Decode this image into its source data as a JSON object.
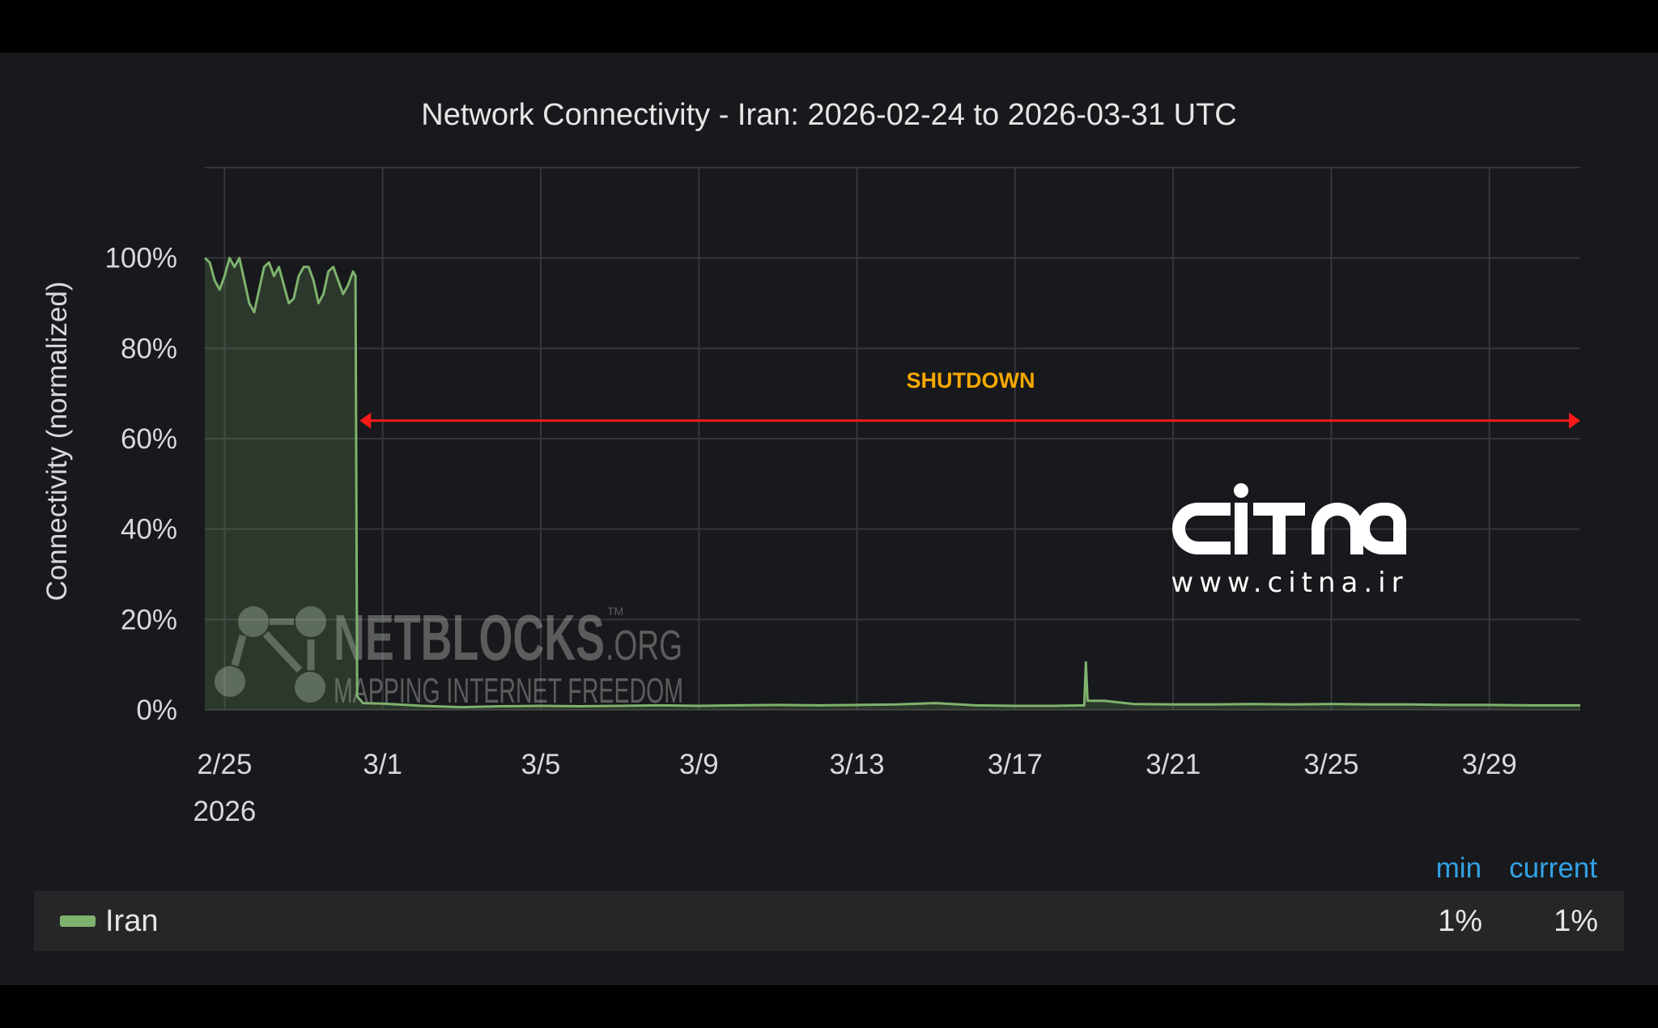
{
  "chart_data": {
    "type": "area",
    "title": "Network Connectivity - Iran: 2026-02-24 to 2026-03-31 UTC",
    "ylabel": "Connectivity (normalized)",
    "xlabel": "",
    "ylim": [
      0,
      120
    ],
    "xlim": [
      "2026-02-24T12:00",
      "2026-03-31T07:12"
    ],
    "grid": true,
    "yticks": [
      {
        "value": 0,
        "label": "0%"
      },
      {
        "value": 20,
        "label": "20%"
      },
      {
        "value": 40,
        "label": "40%"
      },
      {
        "value": 60,
        "label": "60%"
      },
      {
        "value": 80,
        "label": "80%"
      },
      {
        "value": 100,
        "label": "100%"
      }
    ],
    "xticks": [
      {
        "date": "2026-02-25",
        "label": "2/25",
        "sublabel": "2026"
      },
      {
        "date": "2026-03-01",
        "label": "3/1"
      },
      {
        "date": "2026-03-05",
        "label": "3/5"
      },
      {
        "date": "2026-03-09",
        "label": "3/9"
      },
      {
        "date": "2026-03-13",
        "label": "3/13"
      },
      {
        "date": "2026-03-17",
        "label": "3/17"
      },
      {
        "date": "2026-03-21",
        "label": "3/21"
      },
      {
        "date": "2026-03-25",
        "label": "3/25"
      },
      {
        "date": "2026-03-29",
        "label": "3/29"
      }
    ],
    "series": [
      {
        "name": "Iran",
        "color": "#7eb26d",
        "points": [
          [
            "2026-02-24T12:00",
            100
          ],
          [
            "2026-02-24T15:00",
            99
          ],
          [
            "2026-02-24T18:00",
            95
          ],
          [
            "2026-02-24T21:00",
            93
          ],
          [
            "2026-02-25T00:00",
            96
          ],
          [
            "2026-02-25T03:00",
            100
          ],
          [
            "2026-02-25T06:00",
            98
          ],
          [
            "2026-02-25T09:00",
            100
          ],
          [
            "2026-02-25T12:00",
            95
          ],
          [
            "2026-02-25T15:00",
            90
          ],
          [
            "2026-02-25T18:00",
            88
          ],
          [
            "2026-02-25T21:00",
            93
          ],
          [
            "2026-02-26T00:00",
            98
          ],
          [
            "2026-02-26T03:00",
            99
          ],
          [
            "2026-02-26T06:00",
            96
          ],
          [
            "2026-02-26T09:00",
            98
          ],
          [
            "2026-02-26T12:00",
            94
          ],
          [
            "2026-02-26T15:00",
            90
          ],
          [
            "2026-02-26T18:00",
            91
          ],
          [
            "2026-02-26T21:00",
            96
          ],
          [
            "2026-02-27T00:00",
            98
          ],
          [
            "2026-02-27T03:00",
            98
          ],
          [
            "2026-02-27T06:00",
            95
          ],
          [
            "2026-02-27T09:00",
            90
          ],
          [
            "2026-02-27T12:00",
            92
          ],
          [
            "2026-02-27T15:00",
            97
          ],
          [
            "2026-02-27T18:00",
            98
          ],
          [
            "2026-02-27T21:00",
            95
          ],
          [
            "2026-02-28T00:00",
            92
          ],
          [
            "2026-02-28T03:00",
            94
          ],
          [
            "2026-02-28T06:00",
            97
          ],
          [
            "2026-02-28T07:30",
            96
          ],
          [
            "2026-02-28T08:30",
            3
          ],
          [
            "2026-02-28T12:00",
            1.5
          ],
          [
            "2026-03-01T00:00",
            1.4
          ],
          [
            "2026-03-02T00:00",
            0.9
          ],
          [
            "2026-03-03T00:00",
            0.6
          ],
          [
            "2026-03-04T00:00",
            0.8
          ],
          [
            "2026-03-05T00:00",
            0.9
          ],
          [
            "2026-03-06T00:00",
            0.8
          ],
          [
            "2026-03-07T00:00",
            0.9
          ],
          [
            "2026-03-08T00:00",
            1.0
          ],
          [
            "2026-03-09T00:00",
            0.9
          ],
          [
            "2026-03-10T00:00",
            1.0
          ],
          [
            "2026-03-11T00:00",
            1.1
          ],
          [
            "2026-03-12T00:00",
            1.0
          ],
          [
            "2026-03-13T00:00",
            1.1
          ],
          [
            "2026-03-14T00:00",
            1.2
          ],
          [
            "2026-03-15T00:00",
            1.5
          ],
          [
            "2026-03-16T00:00",
            1.0
          ],
          [
            "2026-03-17T00:00",
            0.9
          ],
          [
            "2026-03-18T00:00",
            0.9
          ],
          [
            "2026-03-18T18:00",
            1.0
          ],
          [
            "2026-03-18T19:00",
            10.5
          ],
          [
            "2026-03-18T20:00",
            2.0
          ],
          [
            "2026-03-19T06:00",
            2.0
          ],
          [
            "2026-03-20T00:00",
            1.3
          ],
          [
            "2026-03-21T00:00",
            1.2
          ],
          [
            "2026-03-22T00:00",
            1.2
          ],
          [
            "2026-03-23T00:00",
            1.3
          ],
          [
            "2026-03-24T00:00",
            1.2
          ],
          [
            "2026-03-25T00:00",
            1.3
          ],
          [
            "2026-03-26T00:00",
            1.2
          ],
          [
            "2026-03-27T00:00",
            1.2
          ],
          [
            "2026-03-28T00:00",
            1.1
          ],
          [
            "2026-03-29T00:00",
            1.1
          ],
          [
            "2026-03-30T00:00",
            1.0
          ],
          [
            "2026-03-31T07:12",
            1.0
          ]
        ]
      }
    ],
    "annotations": [
      {
        "text": "SHUTDOWN",
        "color": "#f5a800",
        "arrow_color": "#ff1a1a",
        "y": 64,
        "x_start": "2026-02-28T10:00",
        "x_end": "2026-03-31T07:12"
      }
    ],
    "legend": {
      "placement": "bottom",
      "columns": [
        "min",
        "current"
      ],
      "rows": [
        {
          "name": "Iran",
          "min": "1%",
          "current": "1%"
        }
      ],
      "header_color": "#33a2e5"
    }
  },
  "watermarks": {
    "netblocks": {
      "name": "NETBLOCKS",
      "suffix": ".ORG",
      "tm": "TM",
      "tagline": "MAPPING INTERNET FREEDOM"
    },
    "citna": {
      "logo": "citna",
      "url": "www.citna.ir"
    }
  }
}
